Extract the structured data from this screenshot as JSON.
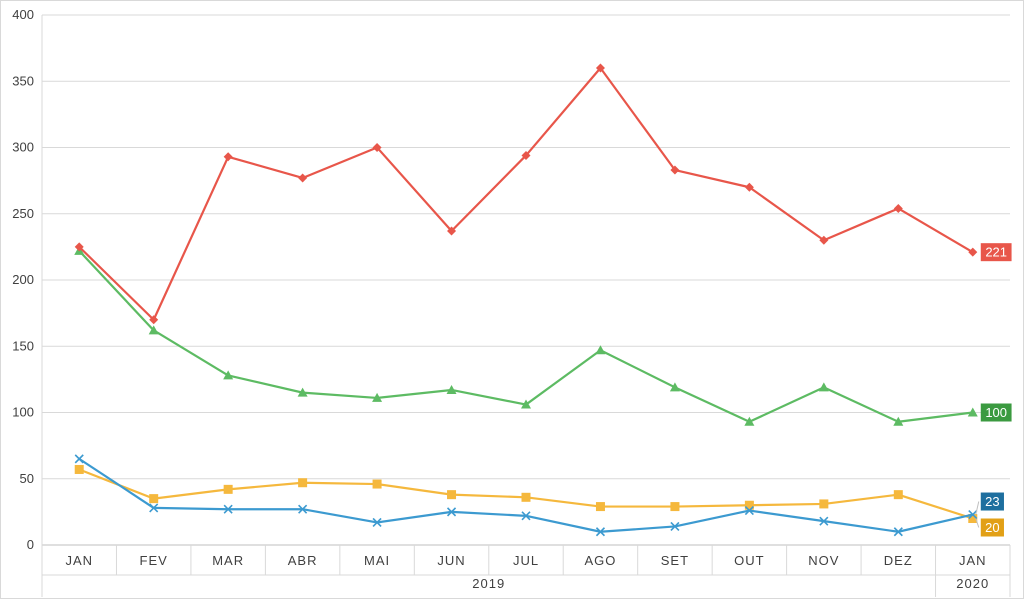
{
  "chart_data": {
    "type": "line",
    "title": "",
    "xlabel": "",
    "ylabel": "",
    "ylim": [
      0,
      400
    ],
    "yticks": [
      0,
      50,
      100,
      150,
      200,
      250,
      300,
      350,
      400
    ],
    "grid": true,
    "legend": "none",
    "categories": [
      "JAN",
      "FEV",
      "MAR",
      "ABR",
      "MAI",
      "JUN",
      "JUL",
      "AGO",
      "SET",
      "OUT",
      "NOV",
      "DEZ",
      "JAN"
    ],
    "groups": [
      {
        "label": "2019",
        "span": 12
      },
      {
        "label": "2020",
        "span": 1
      }
    ],
    "series": [
      {
        "color": "#e8564a",
        "marker": "diamond",
        "end_label": "221",
        "end_label_color": "#e8564a",
        "values": [
          225,
          170,
          293,
          277,
          300,
          237,
          294,
          360,
          283,
          270,
          230,
          254,
          221
        ]
      },
      {
        "color": "#5dbb63",
        "marker": "triangle",
        "end_label": "100",
        "end_label_color": "#3b9a40",
        "values": [
          222,
          162,
          128,
          115,
          111,
          117,
          106,
          147,
          119,
          93,
          119,
          93,
          100
        ]
      },
      {
        "color": "#3c9ad0",
        "marker": "x",
        "end_label": "23",
        "end_label_color": "#1e6f9f",
        "values": [
          65,
          28,
          27,
          27,
          17,
          25,
          22,
          10,
          14,
          26,
          18,
          10,
          23
        ]
      },
      {
        "color": "#f5b83d",
        "marker": "square",
        "end_label": "20",
        "end_label_color": "#e2a016",
        "values": [
          57,
          35,
          42,
          47,
          46,
          38,
          36,
          29,
          29,
          30,
          31,
          38,
          20
        ]
      }
    ]
  }
}
